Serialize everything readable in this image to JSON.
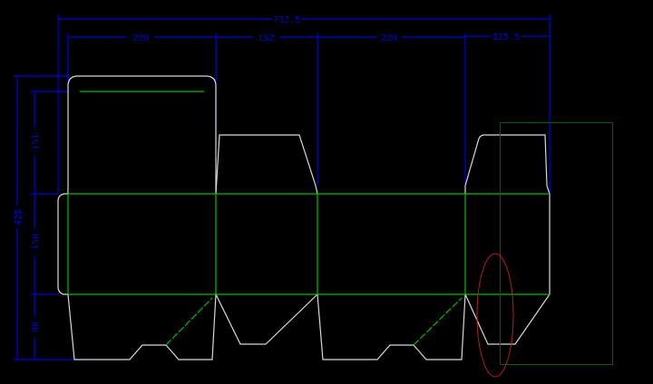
{
  "dimensions": {
    "overall_width": "732.5",
    "panel_1_width": "220",
    "panel_2_width": "152",
    "panel_3_width": "220",
    "panel_4_width": "125.5",
    "overall_height": "425",
    "top_flap_height": "151",
    "body_height": "150",
    "bottom_flap_height": "98"
  },
  "colors": {
    "background": "#000000",
    "cut_line": "#d8d8d8",
    "fold_line": "#00c000",
    "dimension": "#0000e0",
    "selection_rect": "#006000",
    "highlight_ellipse": "#b02020"
  }
}
